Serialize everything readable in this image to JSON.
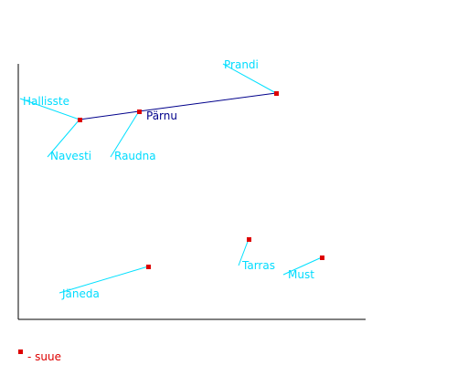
{
  "colors": {
    "axis": "#000000",
    "river": "#00008b",
    "leader": "#00e0ff",
    "label": "#00dcff",
    "label_main": "#00008b",
    "point": "#dd0000"
  },
  "labels": {
    "prandi": "Prandi",
    "hallisste": "Hallisste",
    "parnu": "Pärnu",
    "navesti": "Navesti",
    "raudna": "Raudna",
    "tarras": "Tarras",
    "must": "Must",
    "janeda": "Jäneda"
  },
  "legend": {
    "text": "- suue",
    "icon": "red-square-icon"
  }
}
